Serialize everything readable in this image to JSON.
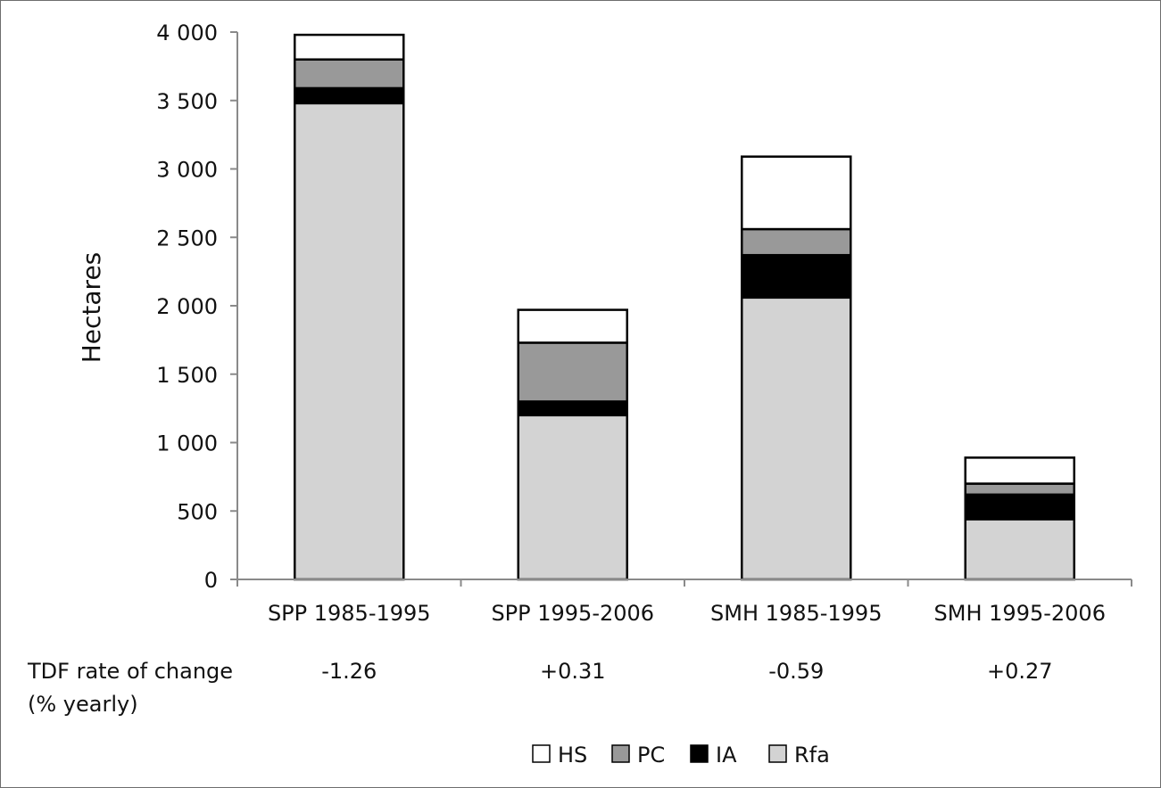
{
  "chart_data": {
    "type": "bar",
    "stacked": true,
    "ylabel": "Hectares",
    "ylim": [
      0,
      4000
    ],
    "yticks": [
      0,
      500,
      1000,
      1500,
      2000,
      2500,
      3000,
      3500,
      4000
    ],
    "ytick_labels": [
      "0",
      "500",
      "1 000",
      "1 500",
      "2 000",
      "2 500",
      "3 000",
      "3 500",
      "4 000"
    ],
    "categories": [
      "SPP 1985-1995",
      "SPP 1995-2006",
      "SMH 1985-1995",
      "SMH 1995-2006"
    ],
    "series": [
      {
        "name": "Rfa",
        "color": "#d3d3d3",
        "values": [
          3480,
          1200,
          2060,
          440
        ]
      },
      {
        "name": "IA",
        "color": "#000000",
        "values": [
          110,
          100,
          310,
          180
        ]
      },
      {
        "name": "PC",
        "color": "#999999",
        "values": [
          210,
          430,
          190,
          80
        ]
      },
      {
        "name": "HS",
        "color": "#ffffff",
        "values": [
          180,
          240,
          530,
          190
        ]
      }
    ],
    "legend_order": [
      "HS",
      "PC",
      "IA",
      "Rfa"
    ],
    "legend_position": "bottom",
    "grid": false
  },
  "rate_table": {
    "label_line1": "TDF rate of  change",
    "label_line2": "(% yearly)",
    "values": [
      "-1.26",
      "+0.31",
      "-0.59",
      "+0.27"
    ]
  }
}
